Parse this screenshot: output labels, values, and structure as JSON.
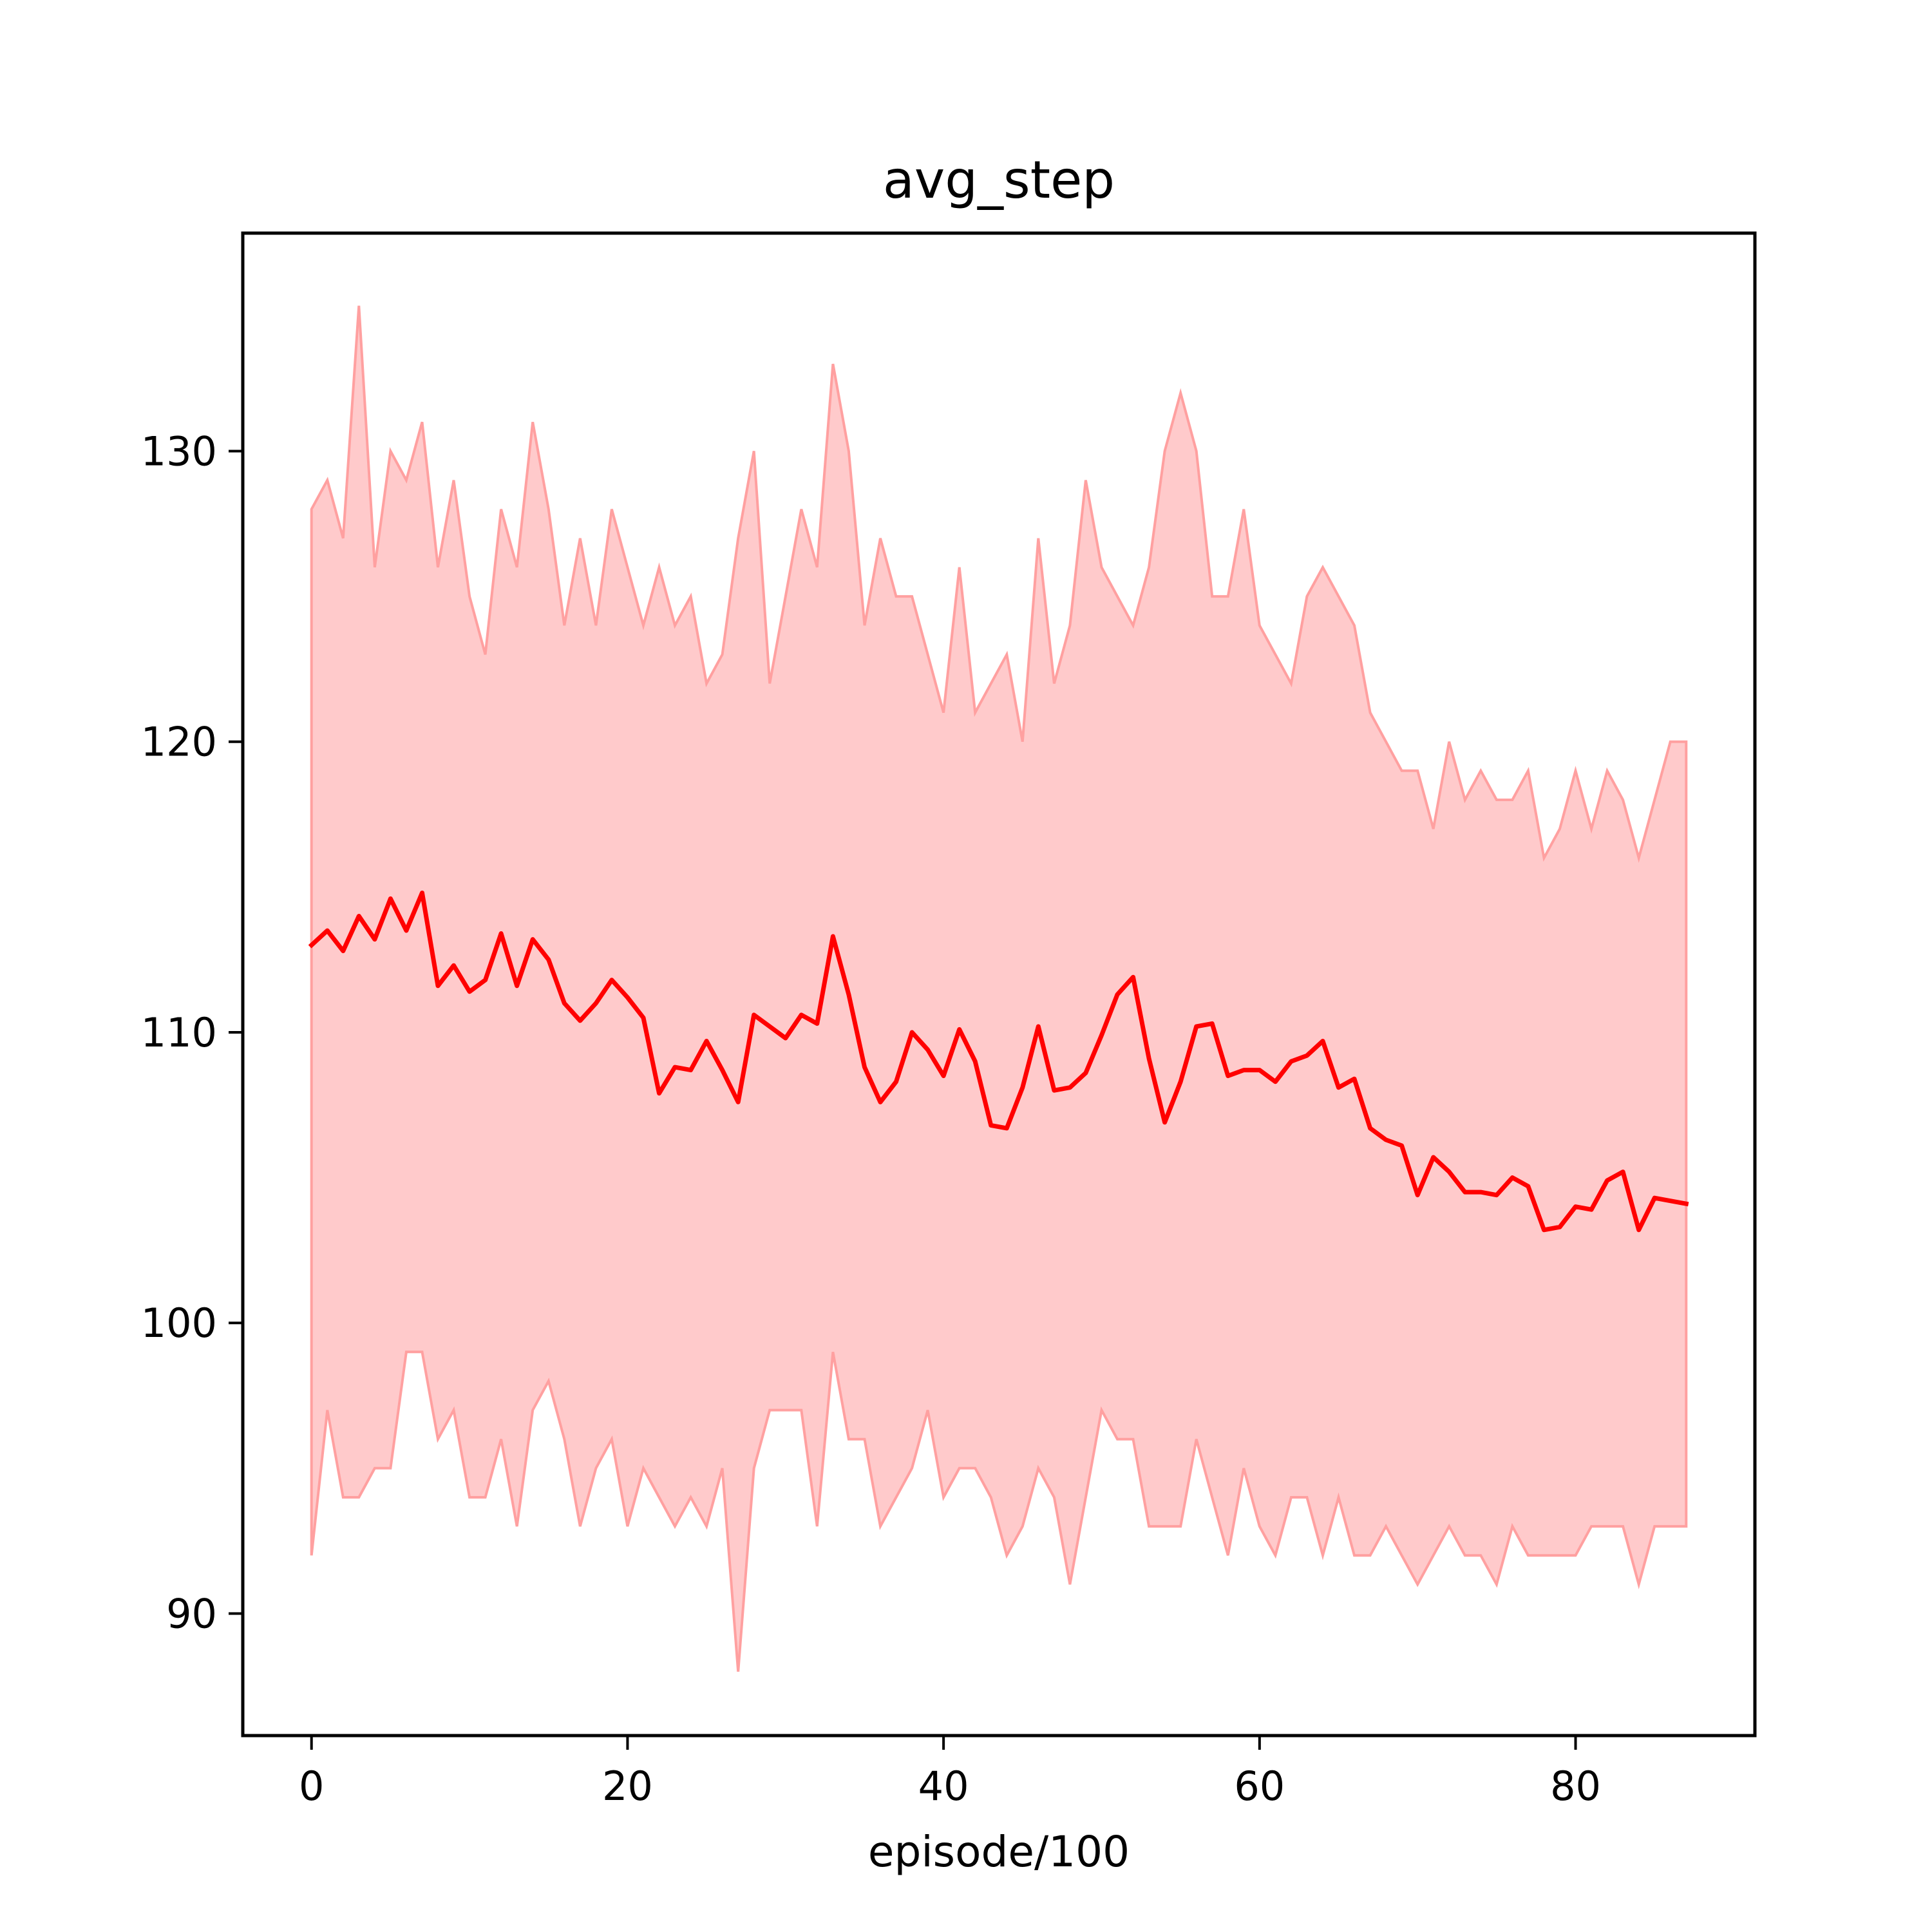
{
  "chart_data": {
    "type": "line",
    "title": "avg_step",
    "xlabel": "episode/100",
    "ylabel": "",
    "xlim": [
      -4.35,
      91.35
    ],
    "ylim": [
      85.8,
      137.5
    ],
    "xticks": [
      0,
      20,
      40,
      60,
      80
    ],
    "yticks": [
      90,
      100,
      110,
      120,
      130
    ],
    "grid": false,
    "legend": "none",
    "colors": {
      "line": "#ff0000",
      "band_fill": "#ffcacb",
      "band_edge": "#ffa0a0",
      "axes": "#000000"
    },
    "x": [
      0,
      1,
      2,
      3,
      4,
      5,
      6,
      7,
      8,
      9,
      10,
      11,
      12,
      13,
      14,
      15,
      16,
      17,
      18,
      19,
      20,
      21,
      22,
      23,
      24,
      25,
      26,
      27,
      28,
      29,
      30,
      31,
      32,
      33,
      34,
      35,
      36,
      37,
      38,
      39,
      40,
      41,
      42,
      43,
      44,
      45,
      46,
      47,
      48,
      49,
      50,
      51,
      52,
      53,
      54,
      55,
      56,
      57,
      58,
      59,
      60,
      61,
      62,
      63,
      64,
      65,
      66,
      67,
      68,
      69,
      70,
      71,
      72,
      73,
      74,
      75,
      76,
      77,
      78,
      79,
      80,
      81,
      82,
      83,
      84,
      85,
      86,
      87
    ],
    "series": [
      {
        "role": "mean",
        "values": [
          113.0,
          113.5,
          112.8,
          114.0,
          113.2,
          114.6,
          113.5,
          114.8,
          111.6,
          112.3,
          111.4,
          111.8,
          113.4,
          111.6,
          113.2,
          112.5,
          111.0,
          110.4,
          111.0,
          111.8,
          111.2,
          110.5,
          107.9,
          108.8,
          108.7,
          109.7,
          108.7,
          107.6,
          110.6,
          110.2,
          109.8,
          110.6,
          110.3,
          113.3,
          111.3,
          108.8,
          107.6,
          108.3,
          110.0,
          109.4,
          108.5,
          110.1,
          109.0,
          106.8,
          106.7,
          108.1,
          110.2,
          108.0,
          108.1,
          108.6,
          109.9,
          111.3,
          111.9,
          109.1,
          106.9,
          108.3,
          110.2,
          110.3,
          108.5,
          108.7,
          108.7,
          108.3,
          109.0,
          109.2,
          109.7,
          108.1,
          108.4,
          106.7,
          106.3,
          106.1,
          104.4,
          105.7,
          105.2,
          104.5,
          104.5,
          104.4,
          105.0,
          104.7,
          103.2,
          103.3,
          104.0,
          103.9,
          104.9,
          105.2,
          103.2,
          104.3,
          104.2,
          104.1
        ]
      },
      {
        "role": "max",
        "values": [
          128,
          129,
          127,
          135,
          126,
          130,
          129,
          131,
          126,
          129,
          125,
          123,
          128,
          126,
          131,
          128,
          124,
          127,
          124,
          128,
          126,
          124,
          126,
          124,
          125,
          122,
          123,
          127,
          130,
          122,
          125,
          128,
          126,
          133,
          130,
          124,
          127,
          125,
          125,
          123,
          121,
          126,
          121,
          122,
          123,
          120,
          127,
          122,
          124,
          129,
          126,
          125,
          124,
          126,
          130,
          132,
          130,
          125,
          125,
          128,
          124,
          123,
          122,
          125,
          126,
          125,
          124,
          121,
          120,
          119,
          119,
          117,
          120,
          118,
          119,
          118,
          118,
          119,
          116,
          117,
          119,
          117,
          119,
          118,
          116,
          118,
          120,
          120
        ]
      },
      {
        "role": "min",
        "values": [
          92,
          97,
          94,
          94,
          95,
          95,
          99,
          99,
          96,
          97,
          94,
          94,
          96,
          93,
          97,
          98,
          96,
          93,
          95,
          96,
          93,
          95,
          94,
          93,
          94,
          93,
          95,
          88,
          95,
          97,
          97,
          97,
          93,
          99,
          96,
          96,
          93,
          94,
          95,
          97,
          94,
          95,
          95,
          94,
          92,
          93,
          95,
          94,
          91,
          94,
          97,
          96,
          96,
          93,
          93,
          93,
          96,
          94,
          92,
          95,
          93,
          92,
          94,
          94,
          92,
          94,
          92,
          92,
          93,
          92,
          91,
          92,
          93,
          92,
          92,
          91,
          93,
          92,
          92,
          92,
          92,
          93,
          93,
          93,
          91,
          93,
          93,
          93
        ]
      }
    ]
  }
}
